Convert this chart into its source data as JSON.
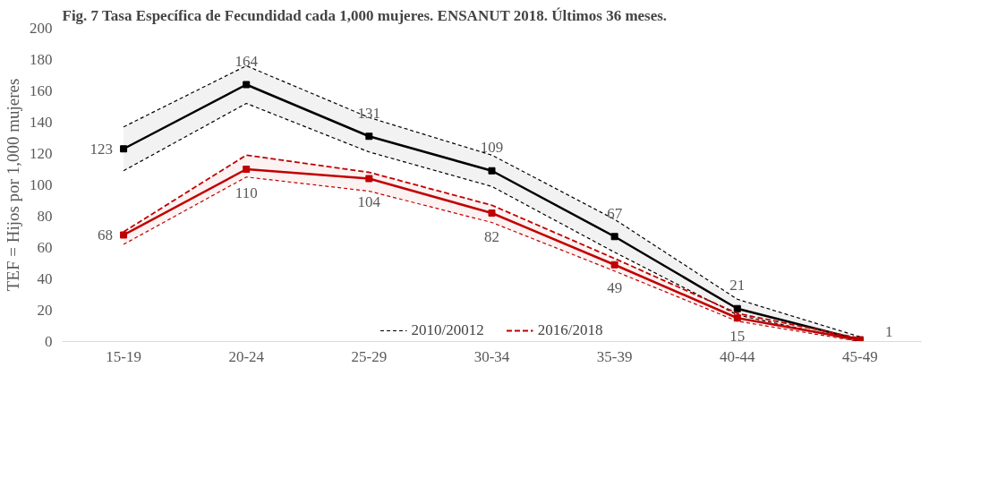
{
  "chart_data": {
    "type": "line",
    "title": "Fig. 7 Tasa Específica de Fecundidad cada 1,000 mujeres. ENSANUT 2018. Últimos 36 meses.",
    "ylabel": "TEF = Hijos por 1,000 mujeres",
    "categories": [
      "15-19",
      "20-24",
      "25-29",
      "30-34",
      "35-39",
      "40-44",
      "45-49"
    ],
    "series": [
      {
        "name": "2010/20012",
        "color": "#000000",
        "values": [
          123,
          164,
          131,
          109,
          67,
          21,
          1
        ],
        "lower": [
          109,
          152,
          121,
          99,
          57,
          17,
          0
        ],
        "upper": [
          137,
          176,
          143,
          119,
          78,
          27,
          3
        ],
        "value_labels": [
          "123",
          "164",
          "131",
          "109",
          "67",
          "21",
          "1"
        ]
      },
      {
        "name": "2016/2018",
        "color": "#c00000",
        "values": [
          68,
          110,
          104,
          82,
          49,
          15,
          1
        ],
        "lower": [
          62,
          105,
          96,
          76,
          45,
          13,
          0
        ],
        "upper": [
          70,
          119,
          108,
          87,
          53,
          18,
          2
        ],
        "value_labels": [
          "68",
          "110",
          "104",
          "82",
          "49",
          "15",
          null
        ]
      }
    ],
    "ylim": [
      0,
      200
    ],
    "yticks": [
      0,
      20,
      40,
      60,
      80,
      100,
      120,
      140,
      160,
      180,
      200
    ],
    "grid": false,
    "legend": "bottom",
    "marker": "square",
    "line_style": "solid"
  }
}
